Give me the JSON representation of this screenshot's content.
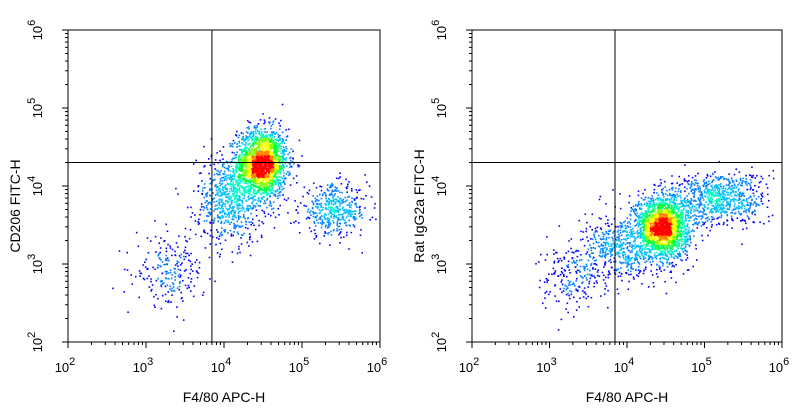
{
  "chart_data": [
    {
      "type": "scatter",
      "subtype": "flow-cytometry-density-dot-plot",
      "xlabel": "F4/80 APC-H",
      "ylabel": "CD206 FITC-H",
      "xscale": "log",
      "yscale": "log",
      "xlim": [
        100,
        1000000
      ],
      "ylim": [
        100,
        1000000
      ],
      "x_ticks": [
        {
          "base": "10",
          "exp": "2",
          "value": 100
        },
        {
          "base": "10",
          "exp": "3",
          "value": 1000
        },
        {
          "base": "10",
          "exp": "4",
          "value": 10000
        },
        {
          "base": "10",
          "exp": "5",
          "value": 100000
        },
        {
          "base": "10",
          "exp": "6",
          "value": 1000000
        }
      ],
      "y_ticks": [
        {
          "base": "10",
          "exp": "2",
          "value": 100
        },
        {
          "base": "10",
          "exp": "3",
          "value": 1000
        },
        {
          "base": "10",
          "exp": "4",
          "value": 10000
        },
        {
          "base": "10",
          "exp": "5",
          "value": 100000
        },
        {
          "base": "10",
          "exp": "6",
          "value": 1000000
        }
      ],
      "gate_lines": {
        "x": 7000,
        "y": 20000
      },
      "grid": false,
      "populations": [
        {
          "x_center": 30000,
          "y_center": 20000,
          "x_spread": 0.16,
          "y_spread": 0.22,
          "count": 1900,
          "peak_density": "high"
        },
        {
          "x_center": 12000,
          "y_center": 7000,
          "x_spread": 0.22,
          "y_spread": 0.28,
          "count": 700,
          "peak_density": "medium"
        },
        {
          "x_center": 250000,
          "y_center": 5000,
          "x_spread": 0.22,
          "y_spread": 0.16,
          "count": 450,
          "peak_density": "low"
        },
        {
          "x_center": 2000,
          "y_center": 800,
          "x_spread": 0.22,
          "y_spread": 0.22,
          "count": 220,
          "peak_density": "low"
        }
      ]
    },
    {
      "type": "scatter",
      "subtype": "flow-cytometry-density-dot-plot",
      "xlabel": "F4/80 APC-H",
      "ylabel": "Rat IgG2a FITC-H",
      "xscale": "log",
      "yscale": "log",
      "xlim": [
        100,
        1000000
      ],
      "ylim": [
        100,
        1000000
      ],
      "x_ticks": [
        {
          "base": "10",
          "exp": "2",
          "value": 100
        },
        {
          "base": "10",
          "exp": "3",
          "value": 1000
        },
        {
          "base": "10",
          "exp": "4",
          "value": 10000
        },
        {
          "base": "10",
          "exp": "5",
          "value": 100000
        },
        {
          "base": "10",
          "exp": "6",
          "value": 1000000
        }
      ],
      "y_ticks": [
        {
          "base": "10",
          "exp": "2",
          "value": 100
        },
        {
          "base": "10",
          "exp": "3",
          "value": 1000
        },
        {
          "base": "10",
          "exp": "4",
          "value": 10000
        },
        {
          "base": "10",
          "exp": "5",
          "value": 100000
        },
        {
          "base": "10",
          "exp": "6",
          "value": 1000000
        }
      ],
      "gate_lines": {
        "x": 7000,
        "y": 20000
      },
      "grid": false,
      "populations": [
        {
          "x_center": 28000,
          "y_center": 3000,
          "x_spread": 0.17,
          "y_spread": 0.2,
          "count": 2100,
          "peak_density": "high"
        },
        {
          "x_center": 150000,
          "y_center": 7000,
          "x_spread": 0.3,
          "y_spread": 0.17,
          "count": 750,
          "peak_density": "low"
        },
        {
          "x_center": 8000,
          "y_center": 1600,
          "x_spread": 0.22,
          "y_spread": 0.2,
          "count": 450,
          "peak_density": "medium"
        },
        {
          "x_center": 2000,
          "y_center": 700,
          "x_spread": 0.22,
          "y_spread": 0.22,
          "count": 220,
          "peak_density": "low"
        }
      ]
    }
  ],
  "colors": {
    "density_scale": [
      "#0000ff",
      "#0080ff",
      "#00c0ff",
      "#00ffc0",
      "#00ff40",
      "#80ff00",
      "#ffff00",
      "#ff8000",
      "#ff0000"
    ],
    "axis": "#000000",
    "background": "#ffffff"
  }
}
